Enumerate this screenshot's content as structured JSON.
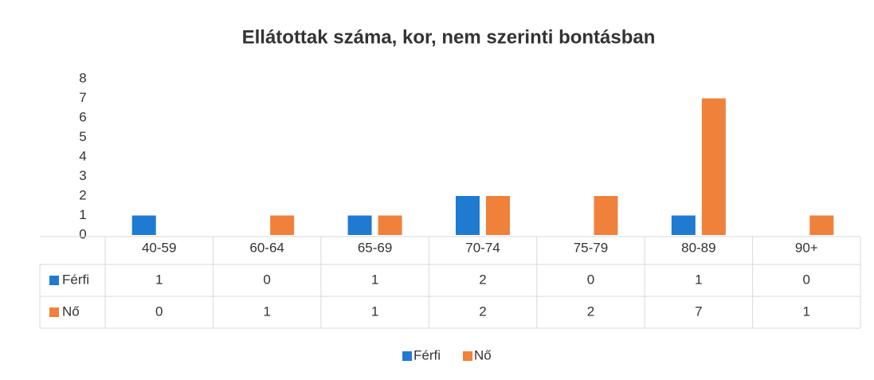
{
  "chart_data": {
    "type": "bar",
    "title": "Ellátottak száma, kor, nem szerinti bontásban",
    "categories": [
      "40-59",
      "60-64",
      "65-69",
      "70-74",
      "75-79",
      "80-89",
      "90+"
    ],
    "series": [
      {
        "name": "Férfi",
        "color": "#1f7bd0",
        "values": [
          1,
          0,
          1,
          2,
          0,
          1,
          0
        ]
      },
      {
        "name": "Nő",
        "color": "#f0813a",
        "values": [
          0,
          1,
          1,
          2,
          2,
          7,
          1
        ]
      }
    ],
    "ylim": [
      0,
      8
    ],
    "yticks": [
      0,
      1,
      2,
      3,
      4,
      5,
      6,
      7,
      8
    ],
    "grid": false,
    "legend": "bottom"
  }
}
